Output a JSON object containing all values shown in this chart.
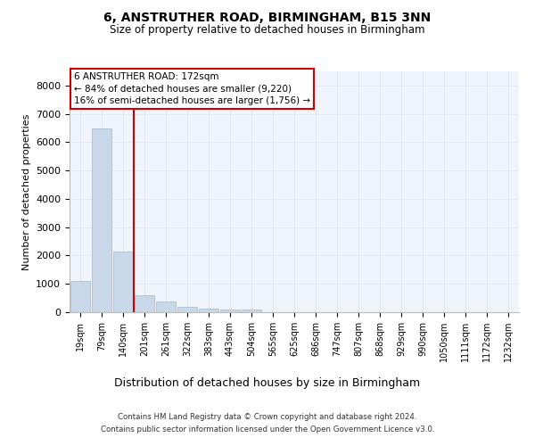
{
  "title_line1": "6, ANSTRUTHER ROAD, BIRMINGHAM, B15 3NN",
  "title_line2": "Size of property relative to detached houses in Birmingham",
  "xlabel": "Distribution of detached houses by size in Birmingham",
  "ylabel": "Number of detached properties",
  "categories": [
    "19sqm",
    "79sqm",
    "140sqm",
    "201sqm",
    "261sqm",
    "322sqm",
    "383sqm",
    "443sqm",
    "504sqm",
    "565sqm",
    "625sqm",
    "686sqm",
    "747sqm",
    "807sqm",
    "868sqm",
    "929sqm",
    "990sqm",
    "1050sqm",
    "1111sqm",
    "1172sqm",
    "1232sqm"
  ],
  "values": [
    1100,
    6500,
    2150,
    600,
    370,
    175,
    120,
    90,
    100,
    0,
    0,
    0,
    0,
    0,
    0,
    0,
    0,
    0,
    0,
    0,
    0
  ],
  "bar_color": "#c8d8e8",
  "bar_edge_color": "#a0b8cc",
  "red_line_x": 2.5,
  "property_size": 172,
  "pct_smaller": 84,
  "count_smaller": 9220,
  "pct_larger_semi": 16,
  "count_larger_semi": 1756,
  "annotation_box_color": "#cc0000",
  "grid_color": "#dce6f0",
  "bg_color": "#f0f5fc",
  "footnote1": "Contains HM Land Registry data © Crown copyright and database right 2024.",
  "footnote2": "Contains public sector information licensed under the Open Government Licence v3.0.",
  "ylim": [
    0,
    8500
  ],
  "yticks": [
    0,
    1000,
    2000,
    3000,
    4000,
    5000,
    6000,
    7000,
    8000
  ]
}
